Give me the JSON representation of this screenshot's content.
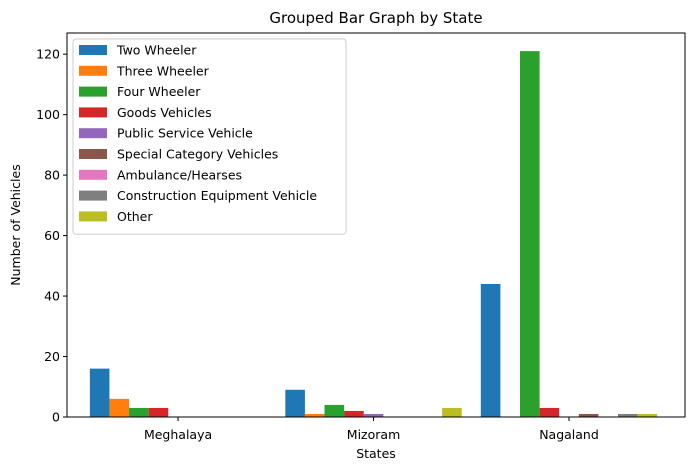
{
  "chart_data": {
    "type": "bar",
    "title": "Grouped Bar Graph by State",
    "xlabel": "States",
    "ylabel": "Number of Vehicles",
    "categories": [
      "Meghalaya",
      "Mizoram",
      "Nagaland"
    ],
    "ylim": [
      0,
      127
    ],
    "yticks": [
      0,
      20,
      40,
      60,
      80,
      100,
      120
    ],
    "grid": false,
    "legend_position": "top-left",
    "series": [
      {
        "name": "Two Wheeler",
        "color": "#1f77b4",
        "values": [
          16,
          9,
          44
        ]
      },
      {
        "name": "Three Wheeler",
        "color": "#ff7f0e",
        "values": [
          6,
          1,
          0
        ]
      },
      {
        "name": "Four Wheeler",
        "color": "#2ca02c",
        "values": [
          3,
          4,
          121
        ]
      },
      {
        "name": "Goods Vehicles",
        "color": "#d62728",
        "values": [
          3,
          2,
          3
        ]
      },
      {
        "name": "Public Service Vehicle",
        "color": "#9467bd",
        "values": [
          0,
          1,
          0
        ]
      },
      {
        "name": "Special Category Vehicles",
        "color": "#8c564b",
        "values": [
          0,
          0,
          1
        ]
      },
      {
        "name": "Ambulance/Hearses",
        "color": "#e377c2",
        "values": [
          0,
          0,
          0
        ]
      },
      {
        "name": "Construction Equipment Vehicle",
        "color": "#7f7f7f",
        "values": [
          0,
          0,
          1
        ]
      },
      {
        "name": "Other",
        "color": "#bcbd22",
        "values": [
          0,
          3,
          1
        ]
      }
    ]
  }
}
